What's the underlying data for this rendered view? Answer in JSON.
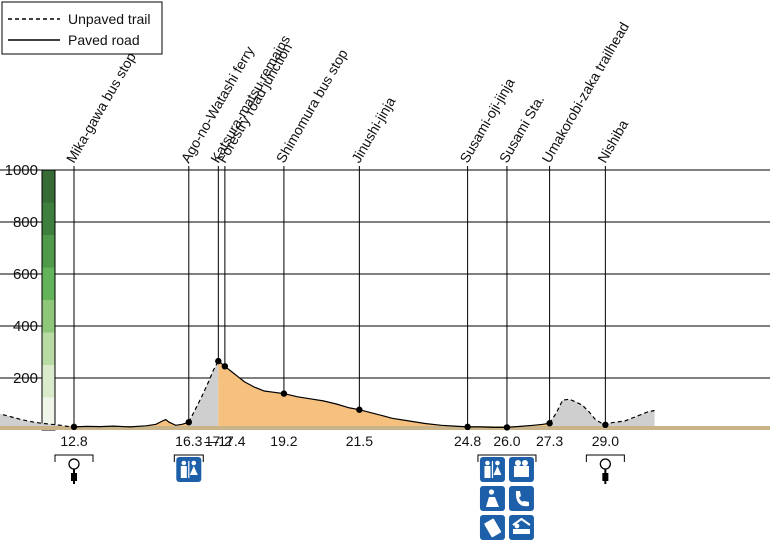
{
  "legend": {
    "unpaved_label": "Unpaved trail",
    "paved_label": "Paved road"
  },
  "colors": {
    "paved_fill": "#f6c07f",
    "unpaved_fill": "#cfcfcf",
    "baseline": "#c9b48a",
    "scale_bar": [
      "#f0f5ea",
      "#d9ebcb",
      "#b8daa3",
      "#8fc77a",
      "#62b35a",
      "#4e9a4a",
      "#3f7f3d",
      "#366b36"
    ],
    "icon_blue": "#1d5fa8"
  },
  "chart_data": {
    "type": "area",
    "title": "",
    "xlabel": "",
    "ylabel": "",
    "x_unit": "km",
    "y_unit": "m",
    "ylim": [
      0,
      1000
    ],
    "xlim": [
      10.0,
      30.5
    ],
    "yticks": [
      200,
      400,
      600,
      800,
      1000
    ],
    "grid": true,
    "legend_position": "top-left",
    "profile": [
      {
        "x": 10.0,
        "y": 70
      },
      {
        "x": 10.3,
        "y": 68
      },
      {
        "x": 10.6,
        "y": 60
      },
      {
        "x": 10.9,
        "y": 50
      },
      {
        "x": 11.2,
        "y": 40
      },
      {
        "x": 11.5,
        "y": 32
      },
      {
        "x": 11.8,
        "y": 26
      },
      {
        "x": 12.1,
        "y": 22
      },
      {
        "x": 12.4,
        "y": 18
      },
      {
        "x": 12.6,
        "y": 14
      },
      {
        "x": 12.8,
        "y": 12
      },
      {
        "x": 13.2,
        "y": 14
      },
      {
        "x": 13.6,
        "y": 13
      },
      {
        "x": 14.0,
        "y": 15
      },
      {
        "x": 14.5,
        "y": 12
      },
      {
        "x": 15.0,
        "y": 16
      },
      {
        "x": 15.3,
        "y": 22
      },
      {
        "x": 15.5,
        "y": 35
      },
      {
        "x": 15.6,
        "y": 40
      },
      {
        "x": 15.7,
        "y": 30
      },
      {
        "x": 15.9,
        "y": 18
      },
      {
        "x": 16.1,
        "y": 22
      },
      {
        "x": 16.3,
        "y": 30
      },
      {
        "x": 16.5,
        "y": 80
      },
      {
        "x": 16.7,
        "y": 130
      },
      {
        "x": 16.9,
        "y": 185
      },
      {
        "x": 17.05,
        "y": 230
      },
      {
        "x": 17.2,
        "y": 265
      },
      {
        "x": 17.3,
        "y": 255
      },
      {
        "x": 17.4,
        "y": 245
      },
      {
        "x": 17.6,
        "y": 225
      },
      {
        "x": 17.8,
        "y": 205
      },
      {
        "x": 18.0,
        "y": 185
      },
      {
        "x": 18.3,
        "y": 165
      },
      {
        "x": 18.6,
        "y": 150
      },
      {
        "x": 18.9,
        "y": 145
      },
      {
        "x": 19.2,
        "y": 140
      },
      {
        "x": 19.6,
        "y": 128
      },
      {
        "x": 20.0,
        "y": 120
      },
      {
        "x": 20.4,
        "y": 112
      },
      {
        "x": 20.8,
        "y": 100
      },
      {
        "x": 21.2,
        "y": 85
      },
      {
        "x": 21.5,
        "y": 78
      },
      {
        "x": 22.0,
        "y": 62
      },
      {
        "x": 22.5,
        "y": 45
      },
      {
        "x": 23.0,
        "y": 35
      },
      {
        "x": 23.5,
        "y": 25
      },
      {
        "x": 24.0,
        "y": 18
      },
      {
        "x": 24.4,
        "y": 15
      },
      {
        "x": 24.8,
        "y": 12
      },
      {
        "x": 25.2,
        "y": 12
      },
      {
        "x": 25.6,
        "y": 10
      },
      {
        "x": 26.0,
        "y": 10
      },
      {
        "x": 26.4,
        "y": 14
      },
      {
        "x": 26.8,
        "y": 18
      },
      {
        "x": 27.1,
        "y": 22
      },
      {
        "x": 27.3,
        "y": 26
      },
      {
        "x": 27.5,
        "y": 65
      },
      {
        "x": 27.7,
        "y": 115
      },
      {
        "x": 27.9,
        "y": 118
      },
      {
        "x": 28.1,
        "y": 108
      },
      {
        "x": 28.3,
        "y": 95
      },
      {
        "x": 28.5,
        "y": 70
      },
      {
        "x": 28.7,
        "y": 40
      },
      {
        "x": 28.9,
        "y": 25
      },
      {
        "x": 29.0,
        "y": 20
      },
      {
        "x": 29.2,
        "y": 28
      },
      {
        "x": 29.6,
        "y": 35
      },
      {
        "x": 30.0,
        "y": 55
      },
      {
        "x": 30.3,
        "y": 70
      },
      {
        "x": 30.5,
        "y": 75
      }
    ],
    "paved_segments": [
      [
        12.8,
        16.3
      ],
      [
        17.2,
        24.8
      ],
      [
        24.8,
        27.3
      ]
    ],
    "unpaved_segments": [
      [
        10.0,
        12.8
      ],
      [
        16.3,
        17.2
      ],
      [
        27.3,
        30.5
      ]
    ],
    "waypoints": [
      {
        "name": "Mika-gawa bus stop",
        "km": 12.8,
        "elev": 12,
        "km_label": "12.8"
      },
      {
        "name": "Ago-no-Watashi ferry",
        "km": 16.3,
        "elev": 30,
        "km_label": "16.3"
      },
      {
        "name": "Katsura-matsu remains",
        "km": 17.2,
        "elev": 265,
        "km_label": "17.2"
      },
      {
        "name": "Forestry road junction",
        "km": 17.4,
        "elev": 245,
        "km_label": "—17.4"
      },
      {
        "name": "Shimomura bus stop",
        "km": 19.2,
        "elev": 140,
        "km_label": "19.2"
      },
      {
        "name": "Jinushi-jinja",
        "km": 21.5,
        "elev": 78,
        "km_label": "21.5"
      },
      {
        "name": "Susami-oji-jinja",
        "km": 24.8,
        "elev": 12,
        "km_label": "24.8"
      },
      {
        "name": "Susami Sta.",
        "km": 26.0,
        "elev": 10,
        "km_label": "26.0"
      },
      {
        "name": "Umakorobi-zaka trailhead",
        "km": 27.3,
        "elev": 26,
        "km_label": "27.3"
      },
      {
        "name": "Nishiba",
        "km": 29.0,
        "elev": 20,
        "km_label": "29.0"
      }
    ],
    "facilities": [
      {
        "km": 12.8,
        "icons": [
          "bus-stop-icon"
        ]
      },
      {
        "km": 16.3,
        "icons": [
          "toilet-icon"
        ]
      },
      {
        "km": 26.0,
        "icons": [
          "toilet-icon",
          "tourist-info-icon",
          "rest-area-icon",
          "telephone-icon",
          "vending-machine-icon",
          "lodging-icon"
        ]
      },
      {
        "km": 29.0,
        "icons": [
          "bus-stop-icon"
        ]
      }
    ]
  }
}
